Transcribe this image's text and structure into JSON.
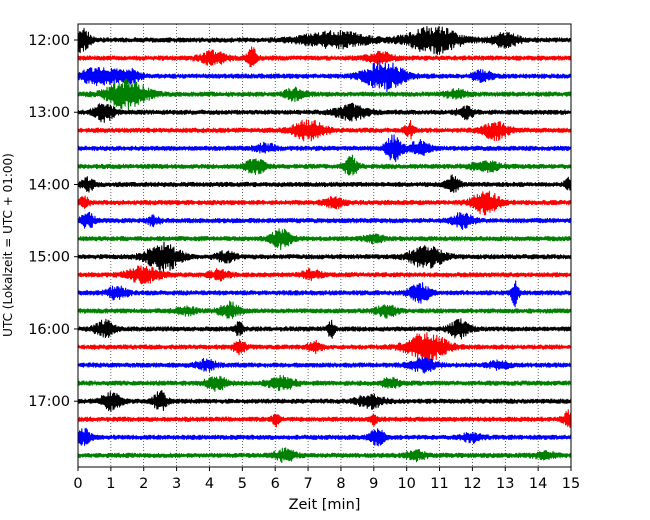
{
  "chart_data": {
    "type": "line",
    "title": "",
    "xlabel": "Zeit  [min]",
    "ylabel": "UTC (Lokalzeit = UTC + 01:00)",
    "xlim": [
      0,
      15
    ],
    "x_ticks": [
      "0",
      "1",
      "2",
      "3",
      "4",
      "5",
      "6",
      "7",
      "8",
      "9",
      "10",
      "11",
      "12",
      "13",
      "14",
      "15"
    ],
    "y_ticks": [
      "12:00",
      "13:00",
      "14:00",
      "15:00",
      "16:00",
      "17:00"
    ],
    "trace_interval_min": 15,
    "grid": "vertical-dotted",
    "trace_colors": [
      "#000000",
      "#ff0000",
      "#0000ff",
      "#008000"
    ],
    "series": [
      {
        "name": "12:00",
        "color": "#000000",
        "bursts": [
          [
            0.1,
            0.9,
            0.25
          ],
          [
            7.8,
            0.55,
            1.0
          ],
          [
            10.8,
            0.9,
            0.8
          ],
          [
            13.0,
            0.5,
            0.4
          ]
        ]
      },
      {
        "name": "12:15",
        "color": "#ff0000",
        "bursts": [
          [
            4.1,
            0.45,
            0.4
          ],
          [
            5.3,
            0.8,
            0.15
          ],
          [
            9.2,
            0.35,
            0.4
          ]
        ]
      },
      {
        "name": "12:30",
        "color": "#0000ff",
        "bursts": [
          [
            0.6,
            0.6,
            0.5
          ],
          [
            1.5,
            0.45,
            0.4
          ],
          [
            9.3,
            1.0,
            0.6
          ],
          [
            12.3,
            0.35,
            0.3
          ]
        ]
      },
      {
        "name": "12:45",
        "color": "#008000",
        "bursts": [
          [
            1.5,
            1.0,
            0.6
          ],
          [
            6.6,
            0.4,
            0.3
          ],
          [
            11.5,
            0.3,
            0.3
          ]
        ]
      },
      {
        "name": "13:00",
        "color": "#000000",
        "bursts": [
          [
            0.8,
            0.6,
            0.3
          ],
          [
            8.3,
            0.5,
            0.5
          ],
          [
            11.8,
            0.4,
            0.25
          ]
        ]
      },
      {
        "name": "13:15",
        "color": "#ff0000",
        "bursts": [
          [
            7.0,
            0.65,
            0.5
          ],
          [
            10.1,
            0.55,
            0.15
          ],
          [
            12.7,
            0.6,
            0.4
          ]
        ]
      },
      {
        "name": "13:30",
        "color": "#0000ff",
        "bursts": [
          [
            9.6,
            0.9,
            0.25
          ],
          [
            10.4,
            0.5,
            0.3
          ],
          [
            5.7,
            0.3,
            0.3
          ]
        ]
      },
      {
        "name": "13:45",
        "color": "#008000",
        "bursts": [
          [
            5.4,
            0.55,
            0.3
          ],
          [
            8.3,
            0.7,
            0.2
          ],
          [
            12.4,
            0.4,
            0.4
          ]
        ]
      },
      {
        "name": "14:00",
        "color": "#000000",
        "bursts": [
          [
            0.3,
            0.45,
            0.2
          ],
          [
            11.4,
            0.6,
            0.2
          ],
          [
            14.9,
            0.4,
            0.1
          ]
        ]
      },
      {
        "name": "14:15",
        "color": "#ff0000",
        "bursts": [
          [
            0.2,
            0.4,
            0.15
          ],
          [
            12.4,
            0.8,
            0.4
          ],
          [
            7.8,
            0.35,
            0.3
          ]
        ]
      },
      {
        "name": "14:30",
        "color": "#0000ff",
        "bursts": [
          [
            0.3,
            0.5,
            0.2
          ],
          [
            11.7,
            0.55,
            0.3
          ],
          [
            2.3,
            0.3,
            0.2
          ]
        ]
      },
      {
        "name": "14:45",
        "color": "#008000",
        "bursts": [
          [
            6.2,
            0.7,
            0.3
          ],
          [
            9.0,
            0.25,
            0.3
          ]
        ]
      },
      {
        "name": "15:00",
        "color": "#000000",
        "bursts": [
          [
            2.6,
            1.0,
            0.5
          ],
          [
            10.6,
            0.8,
            0.5
          ],
          [
            4.5,
            0.35,
            0.3
          ]
        ]
      },
      {
        "name": "15:15",
        "color": "#ff0000",
        "bursts": [
          [
            2.0,
            0.55,
            0.5
          ],
          [
            4.3,
            0.3,
            0.3
          ],
          [
            7.1,
            0.3,
            0.3
          ]
        ]
      },
      {
        "name": "15:30",
        "color": "#0000ff",
        "bursts": [
          [
            1.2,
            0.45,
            0.3
          ],
          [
            10.4,
            0.65,
            0.3
          ],
          [
            13.3,
            1.0,
            0.1
          ]
        ]
      },
      {
        "name": "15:45",
        "color": "#008000",
        "bursts": [
          [
            4.6,
            0.55,
            0.3
          ],
          [
            9.4,
            0.4,
            0.3
          ],
          [
            3.3,
            0.25,
            0.3
          ]
        ]
      },
      {
        "name": "16:00",
        "color": "#000000",
        "bursts": [
          [
            0.8,
            0.55,
            0.3
          ],
          [
            4.9,
            0.5,
            0.12
          ],
          [
            7.7,
            0.6,
            0.1
          ],
          [
            11.6,
            0.6,
            0.3
          ]
        ]
      },
      {
        "name": "16:15",
        "color": "#ff0000",
        "bursts": [
          [
            4.9,
            0.45,
            0.2
          ],
          [
            7.2,
            0.4,
            0.2
          ],
          [
            10.6,
            1.0,
            0.6
          ]
        ]
      },
      {
        "name": "16:30",
        "color": "#0000ff",
        "bursts": [
          [
            3.9,
            0.35,
            0.3
          ],
          [
            10.5,
            0.45,
            0.4
          ],
          [
            12.8,
            0.25,
            0.3
          ]
        ]
      },
      {
        "name": "16:45",
        "color": "#008000",
        "bursts": [
          [
            4.2,
            0.55,
            0.3
          ],
          [
            6.2,
            0.45,
            0.4
          ],
          [
            9.5,
            0.3,
            0.3
          ]
        ]
      },
      {
        "name": "17:00",
        "color": "#000000",
        "bursts": [
          [
            1.0,
            0.6,
            0.3
          ],
          [
            2.5,
            0.7,
            0.2
          ],
          [
            8.9,
            0.45,
            0.4
          ]
        ]
      },
      {
        "name": "17:15",
        "color": "#ff0000",
        "bursts": [
          [
            6.0,
            0.5,
            0.1
          ],
          [
            9.0,
            0.45,
            0.1
          ],
          [
            14.9,
            0.55,
            0.15
          ]
        ]
      },
      {
        "name": "17:30",
        "color": "#0000ff",
        "bursts": [
          [
            0.2,
            0.55,
            0.2
          ],
          [
            9.1,
            0.65,
            0.2
          ],
          [
            12.0,
            0.3,
            0.3
          ]
        ]
      },
      {
        "name": "17:45",
        "color": "#008000",
        "bursts": [
          [
            6.3,
            0.4,
            0.3
          ],
          [
            10.3,
            0.3,
            0.3
          ],
          [
            14.2,
            0.25,
            0.3
          ]
        ]
      }
    ]
  }
}
